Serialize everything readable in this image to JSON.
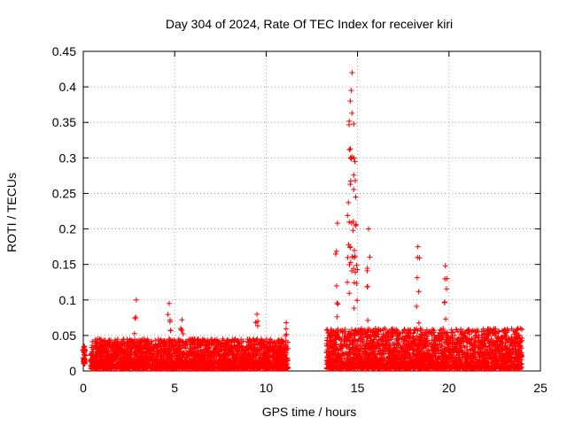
{
  "chart_data": {
    "type": "scatter",
    "title": "Day 304 of 2024, Rate Of TEC Index for receiver kiri",
    "xlabel": "GPS time / hours",
    "ylabel": "ROTI / TECUs",
    "xlim": [
      0,
      25
    ],
    "ylim": [
      0,
      0.45
    ],
    "x_ticks": [
      "0",
      "5",
      "10",
      "15",
      "20",
      "25"
    ],
    "y_ticks": [
      "0",
      "0.05",
      "0.1",
      "0.15",
      "0.2",
      "0.25",
      "0.3",
      "0.35",
      "0.4",
      "0.45"
    ],
    "grid": true,
    "marker": "+",
    "marker_color": "#ff0000",
    "series": [
      {
        "name": "ROTI",
        "notable_points": [
          {
            "x": 14.7,
            "y": 0.42
          },
          {
            "x": 14.65,
            "y": 0.395
          },
          {
            "x": 14.6,
            "y": 0.38
          },
          {
            "x": 14.8,
            "y": 0.3
          },
          {
            "x": 14.85,
            "y": 0.295
          },
          {
            "x": 14.9,
            "y": 0.245
          },
          {
            "x": 14.5,
            "y": 0.237
          },
          {
            "x": 13.9,
            "y": 0.208
          },
          {
            "x": 15.6,
            "y": 0.2
          },
          {
            "x": 18.3,
            "y": 0.175
          },
          {
            "x": 19.8,
            "y": 0.148
          },
          {
            "x": 2.9,
            "y": 0.1
          },
          {
            "x": 4.7,
            "y": 0.095
          },
          {
            "x": 9.5,
            "y": 0.08
          },
          {
            "x": 5.4,
            "y": 0.072
          },
          {
            "x": 11.1,
            "y": 0.068
          },
          {
            "x": 23.9,
            "y": 0.06
          },
          {
            "x": 0.05,
            "y": 0.034
          }
        ],
        "description_ranges": [
          {
            "x_from": 0.0,
            "x_to": 0.1,
            "y_from": 0.01,
            "y_to": 0.035
          },
          {
            "x_from": 0.4,
            "x_to": 11.2,
            "y_from": 0.003,
            "y_to": 0.045
          },
          {
            "x_from": 13.3,
            "x_to": 24.0,
            "y_from": 0.003,
            "y_to": 0.06
          }
        ],
        "gap_hours": [
          11.2,
          13.3
        ]
      }
    ]
  }
}
